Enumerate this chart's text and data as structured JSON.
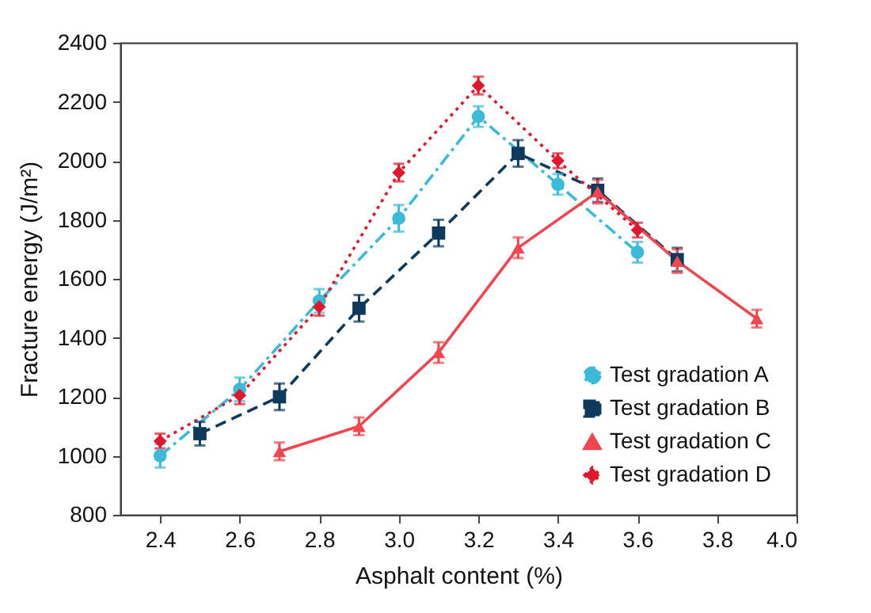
{
  "chart_data": {
    "type": "line",
    "xlabel": "Asphalt content (%)",
    "ylabel": "Fracture energy (J/m²)",
    "xlim": [
      2.3,
      4.0
    ],
    "xticks": [
      2.4,
      2.6,
      2.8,
      {
        "value": 3,
        "label": "3.0"
      },
      3.2,
      3.4,
      3.6,
      3.8,
      {
        "value": 4,
        "label": "4.0"
      }
    ],
    "ylim": [
      800,
      2400
    ],
    "yticks": [
      800,
      1000,
      1200,
      1400,
      1600,
      1800,
      2000,
      2200,
      2400
    ],
    "grid": false,
    "legend": "bottom right",
    "series": [
      {
        "name": "Test gradation A",
        "color": "#3bbbd8",
        "marker": "circle",
        "line_style": "dashdot",
        "x": [
          2.4,
          2.6,
          2.8,
          3.0,
          3.2,
          3.4,
          3.6
        ],
        "values": [
          1000,
          1225,
          1525,
          1805,
          2150,
          1920,
          1690
        ],
        "errors": [
          40,
          40,
          40,
          45,
          35,
          35,
          35
        ]
      },
      {
        "name": "Test gradation B",
        "color": "#0d3a5c",
        "marker": "square",
        "line_style": "dashed",
        "x": [
          2.5,
          2.7,
          2.9,
          3.1,
          3.3,
          3.5,
          3.7
        ],
        "values": [
          1075,
          1200,
          1500,
          1755,
          2025,
          1900,
          1665
        ],
        "errors": [
          40,
          45,
          45,
          45,
          45,
          40,
          40
        ]
      },
      {
        "name": "Test gradation C",
        "color": "#f0464f",
        "marker": "triangle",
        "line_style": "solid",
        "x": [
          2.7,
          2.9,
          3.1,
          3.3,
          3.5,
          3.7,
          3.9
        ],
        "values": [
          1015,
          1100,
          1350,
          1705,
          1895,
          1660,
          1465
        ],
        "errors": [
          30,
          30,
          35,
          35,
          40,
          40,
          30
        ]
      },
      {
        "name": "Test gradation D",
        "color": "#e0182d",
        "marker": "diamond",
        "line_style": "dotted",
        "x": [
          2.4,
          2.6,
          2.8,
          3.0,
          3.2,
          3.4,
          3.6
        ],
        "values": [
          1050,
          1205,
          1505,
          1960,
          2255,
          2000,
          1765
        ],
        "errors": [
          25,
          30,
          30,
          30,
          30,
          25,
          25
        ]
      }
    ]
  }
}
